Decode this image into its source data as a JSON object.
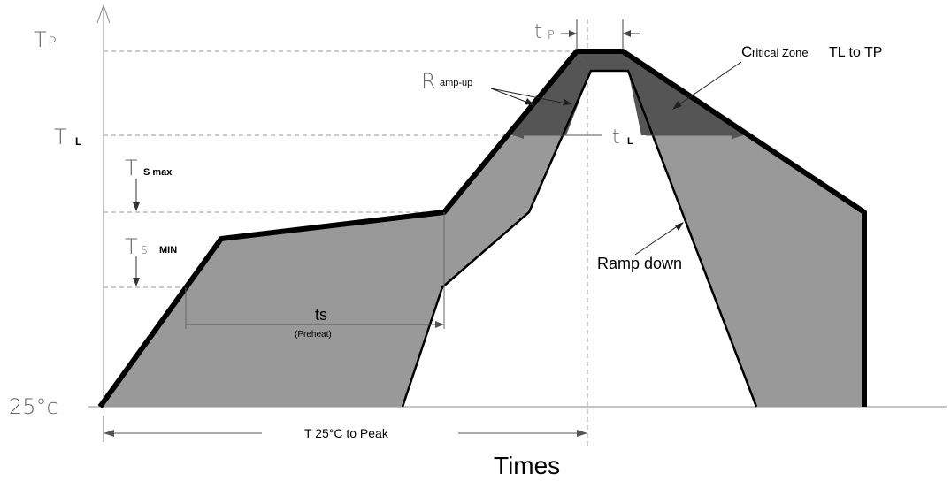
{
  "labels": {
    "tp_main": "T",
    "tp_sub": "P",
    "tl_main": "T",
    "tl_sub": "L",
    "tsmax_main": "T",
    "tsmax_sub": "S max",
    "tsmin_main": "T",
    "tsmin_sub1": "S",
    "tsmin_sub2": "MIN",
    "t25": "25°c",
    "tp_time_main": "t",
    "tp_time_sub": "P",
    "tl_time_main": "t",
    "tl_time_sub": "L",
    "rampup_main": "R",
    "rampup_rest": "amp-up",
    "critical_c": "C",
    "critical_rest": "ritical Zone",
    "critical_tl": "TL to TP",
    "ramp_down": "Ramp down",
    "ts": "ts",
    "preheat": "(Preheat)",
    "t25_peak": "T 25°C to Peak",
    "times": "Times"
  },
  "colors": {
    "band": "#999999",
    "critical": "#555555",
    "outline": "#000000",
    "guide": "#999999"
  }
}
